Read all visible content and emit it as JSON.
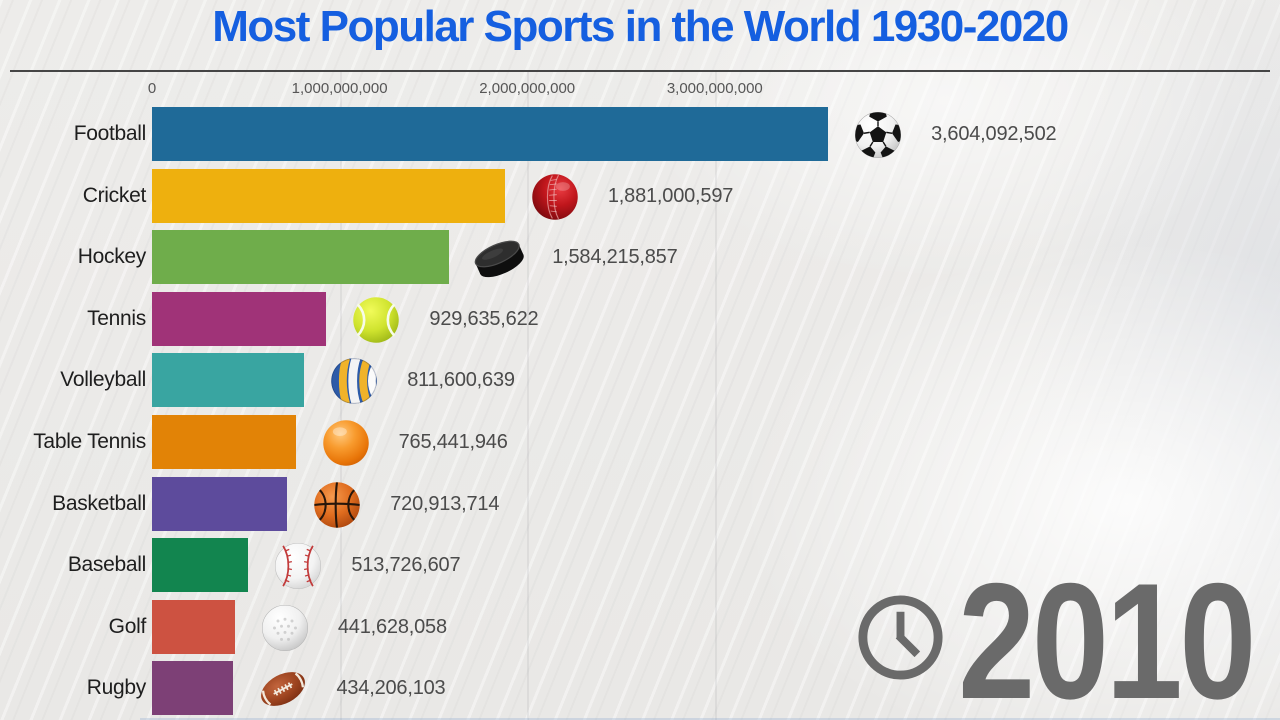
{
  "title": "Most Popular Sports in the World 1930-2020",
  "year": {
    "label": "2010",
    "icon": "clock-icon",
    "color": "#6a6a6a"
  },
  "axis": {
    "tick_labels": [
      "0",
      "1,000,000,000",
      "2,000,000,000",
      "3,000,000,000"
    ],
    "tick_values": [
      0,
      1000000000,
      2000000000,
      3000000000
    ]
  },
  "chart_data": {
    "type": "bar",
    "orientation": "horizontal",
    "title": "Most Popular Sports in the World 1930-2020",
    "xlabel": "",
    "ylabel": "",
    "xlim": [
      0,
      3800000000
    ],
    "grid": true,
    "legend": "none",
    "title_color": "#155fe0",
    "categories": [
      "Football",
      "Cricket",
      "Hockey",
      "Tennis",
      "Volleyball",
      "Table Tennis",
      "Basketball",
      "Baseball",
      "Golf",
      "Rugby"
    ],
    "values": [
      3604092502,
      1881000597,
      1584215857,
      929635622,
      811600639,
      765441946,
      720913714,
      513726607,
      441628058,
      434206103
    ],
    "value_labels": [
      "3,604,092,502",
      "1,881,000,597",
      "1,584,215,857",
      "929,635,622",
      "811,600,639",
      "765,441,946",
      "720,913,714",
      "513,726,607",
      "441,628,058",
      "434,206,103"
    ],
    "bar_colors": [
      "#1f6a98",
      "#eeb00e",
      "#6fad4b",
      "#a03378",
      "#39a5a1",
      "#e28306",
      "#5d4b9c",
      "#12854f",
      "#cd5241",
      "#7d4076"
    ],
    "icons": [
      "soccer-ball-icon",
      "cricket-ball-icon",
      "hockey-puck-icon",
      "tennis-ball-icon",
      "volleyball-icon",
      "table-tennis-ball-icon",
      "basketball-icon",
      "baseball-icon",
      "golf-ball-icon",
      "rugby-ball-icon"
    ]
  }
}
